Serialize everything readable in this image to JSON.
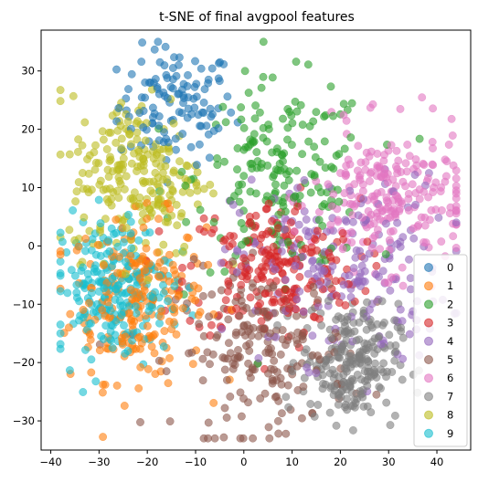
{
  "chart_data": {
    "type": "scatter",
    "title": "t-SNE of final avgpool features",
    "xlabel": "",
    "ylabel": "",
    "xlim": [
      -42,
      47
    ],
    "ylim": [
      -35,
      37
    ],
    "xticks": [
      -40,
      -30,
      -20,
      -10,
      0,
      10,
      20,
      30,
      40
    ],
    "yticks": [
      -30,
      -20,
      -10,
      0,
      10,
      20,
      30
    ],
    "grid": false,
    "legend_position": "bottom-right",
    "series": [
      {
        "name": "0",
        "color": "#1f77b4",
        "cx": -14,
        "cy": 24,
        "sx": 6,
        "sy": 5,
        "n": 120
      },
      {
        "name": "1",
        "color": "#ff7f0e",
        "cx": -22,
        "cy": -9,
        "sx": 7,
        "sy": 7,
        "n": 230
      },
      {
        "name": "2",
        "color": "#2ca02c",
        "cx": 8,
        "cy": 12,
        "sx": 9,
        "sy": 8,
        "n": 190
      },
      {
        "name": "3",
        "color": "#d62728",
        "cx": 6,
        "cy": -4,
        "sx": 9,
        "sy": 6,
        "n": 220
      },
      {
        "name": "4",
        "color": "#9467bd",
        "cx": 20,
        "cy": -4,
        "sx": 11,
        "sy": 8,
        "n": 200
      },
      {
        "name": "5",
        "color": "#8c564b",
        "cx": 4,
        "cy": -18,
        "sx": 9,
        "sy": 7,
        "n": 200
      },
      {
        "name": "6",
        "color": "#e377c2",
        "cx": 30,
        "cy": 8,
        "sx": 8,
        "sy": 6,
        "n": 230
      },
      {
        "name": "7",
        "color": "#7f7f7f",
        "cx": 22,
        "cy": -20,
        "sx": 5,
        "sy": 5,
        "n": 230
      },
      {
        "name": "8",
        "color": "#bcbd22",
        "cx": -22,
        "cy": 12,
        "sx": 7,
        "sy": 7,
        "n": 230
      },
      {
        "name": "9",
        "color": "#17becf",
        "cx": -27,
        "cy": -7,
        "sx": 6,
        "sy": 6,
        "n": 230
      }
    ]
  }
}
